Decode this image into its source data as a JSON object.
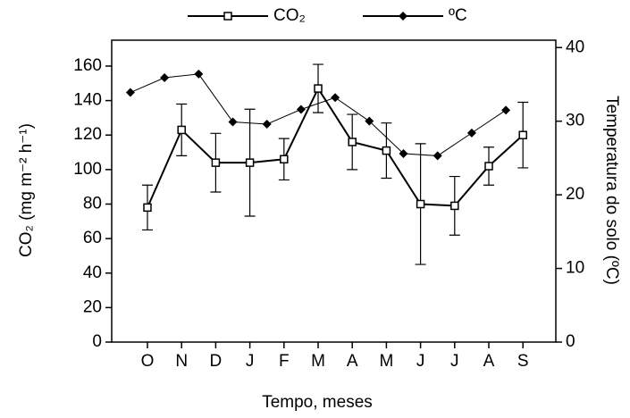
{
  "chart_data": {
    "type": "line",
    "x_label": "Tempo, meses",
    "y_label": "CO₂ (mg m⁻² h⁻¹)",
    "y2_label": "Temperatura do solo (ºC)",
    "categories": [
      "O",
      "N",
      "D",
      "J",
      "F",
      "M",
      "A",
      "M",
      "J",
      "J",
      "A",
      "S"
    ],
    "series": [
      {
        "name": "CO₂",
        "color": "#000000",
        "marker": "square",
        "values": [
          78,
          123,
          104,
          104,
          106,
          147,
          116,
          111,
          80,
          79,
          102,
          120
        ],
        "errors": [
          13,
          15,
          17,
          31,
          12,
          14,
          16,
          16,
          35,
          17,
          11,
          19
        ]
      },
      {
        "name": "ºC",
        "color": "#000000",
        "marker": "diamond",
        "axis": "y2",
        "values": [
          33.9,
          35.9,
          36.4,
          29.9,
          29.6,
          31.6,
          33.2,
          30.0,
          25.6,
          25.3,
          28.4,
          31.5
        ]
      }
    ],
    "ylim": [
      0,
      175
    ],
    "yticks": [
      0,
      20,
      40,
      60,
      80,
      100,
      120,
      140,
      160
    ],
    "y2lim": [
      0,
      41
    ],
    "y2ticks": [
      0,
      10,
      20,
      30,
      40
    ],
    "legend": "top"
  }
}
